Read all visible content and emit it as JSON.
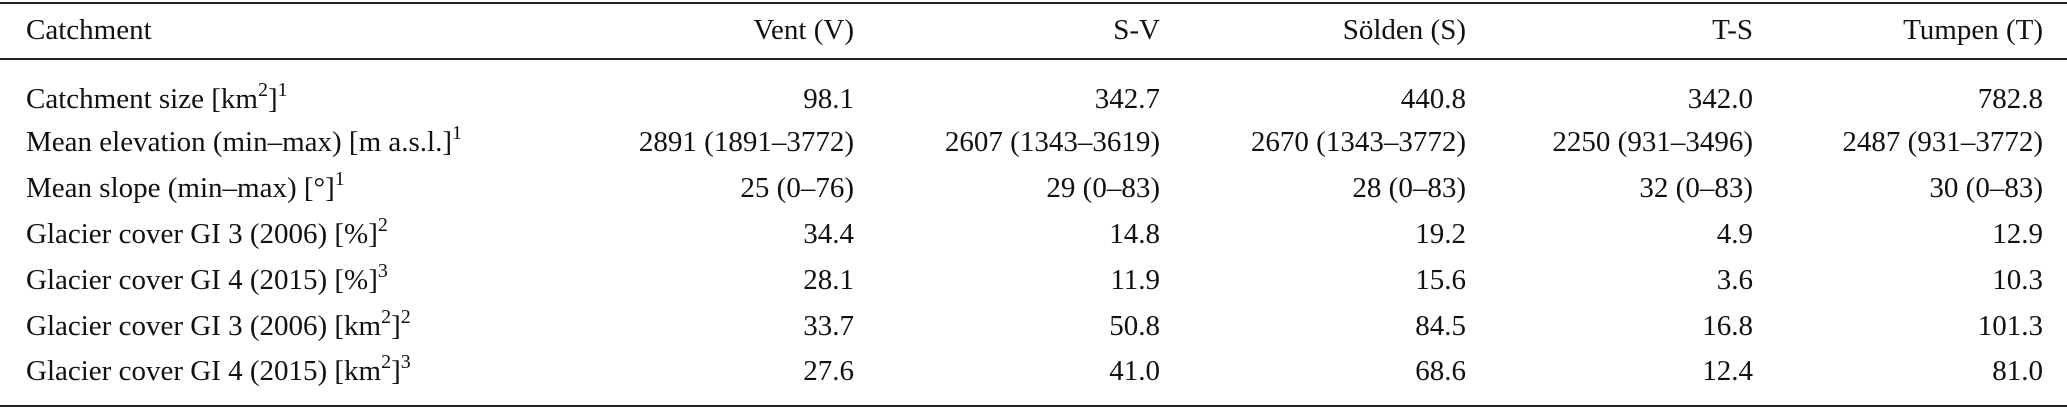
{
  "table": {
    "header": [
      "Catchment",
      "Vent (V)",
      "S-V",
      "Sölden (S)",
      "T-S",
      "Tumpen (T)"
    ],
    "rows": [
      {
        "label": [
          {
            "text": "Catchment size [km"
          },
          {
            "text": "2",
            "sup": true
          },
          {
            "text": "]"
          },
          {
            "text": "1",
            "sup": true
          }
        ],
        "cells": [
          "98.1",
          "342.7",
          "440.8",
          "342.0",
          "782.8"
        ]
      },
      {
        "label": [
          {
            "text": "Mean elevation (min–max) [m a.s.l.]"
          },
          {
            "text": "1",
            "sup": true
          }
        ],
        "cells": [
          "2891 (1891–3772)",
          "2607 (1343–3619)",
          "2670 (1343–3772)",
          "2250 (931–3496)",
          "2487 (931–3772)"
        ]
      },
      {
        "label": [
          {
            "text": "Mean slope (min–max) [°]"
          },
          {
            "text": "1",
            "sup": true
          }
        ],
        "cells": [
          "25 (0–76)",
          "29 (0–83)",
          "28 (0–83)",
          "32 (0–83)",
          "30 (0–83)"
        ]
      },
      {
        "label": [
          {
            "text": "Glacier cover GI 3 (2006) [%]"
          },
          {
            "text": "2",
            "sup": true
          }
        ],
        "cells": [
          "34.4",
          "14.8",
          "19.2",
          "4.9",
          "12.9"
        ]
      },
      {
        "label": [
          {
            "text": "Glacier cover GI 4 (2015) [%]"
          },
          {
            "text": "3",
            "sup": true
          }
        ],
        "cells": [
          "28.1",
          "11.9",
          "15.6",
          "3.6",
          "10.3"
        ]
      },
      {
        "label": [
          {
            "text": "Glacier cover GI 3 (2006) [km"
          },
          {
            "text": "2",
            "sup": true
          },
          {
            "text": "]"
          },
          {
            "text": "2",
            "sup": true
          }
        ],
        "cells": [
          "33.7",
          "50.8",
          "84.5",
          "16.8",
          "101.3"
        ]
      },
      {
        "label": [
          {
            "text": "Glacier cover GI 4 (2015) [km"
          },
          {
            "text": "2",
            "sup": true
          },
          {
            "text": "]"
          },
          {
            "text": "3",
            "sup": true
          }
        ],
        "cells": [
          "27.6",
          "41.0",
          "68.6",
          "12.4",
          "81.0"
        ]
      }
    ]
  }
}
